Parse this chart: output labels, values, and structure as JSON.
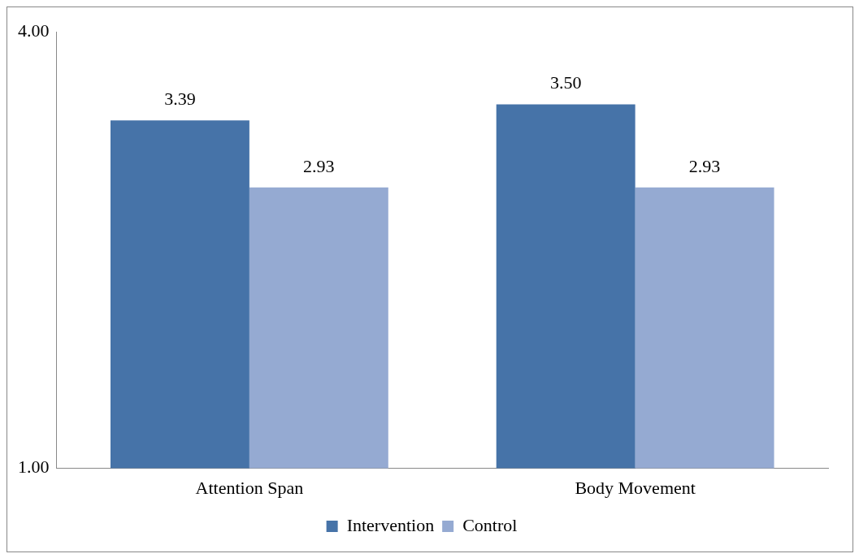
{
  "chart_data": {
    "type": "bar",
    "categories": [
      "Attention Span",
      "Body Movement"
    ],
    "series": [
      {
        "name": "Intervention",
        "color": "#4673a8",
        "values": [
          3.39,
          3.5
        ],
        "value_labels": [
          "3.39",
          "3.50"
        ]
      },
      {
        "name": "Control",
        "color": "#95aad2",
        "values": [
          2.93,
          2.93
        ],
        "value_labels": [
          "2.93",
          "2.93"
        ]
      }
    ],
    "ylim": [
      1,
      4
    ],
    "yticks": [
      {
        "value": 1,
        "label": "1.00"
      },
      {
        "value": 4,
        "label": "4.00"
      }
    ],
    "grid": false,
    "legend": "bottom"
  }
}
